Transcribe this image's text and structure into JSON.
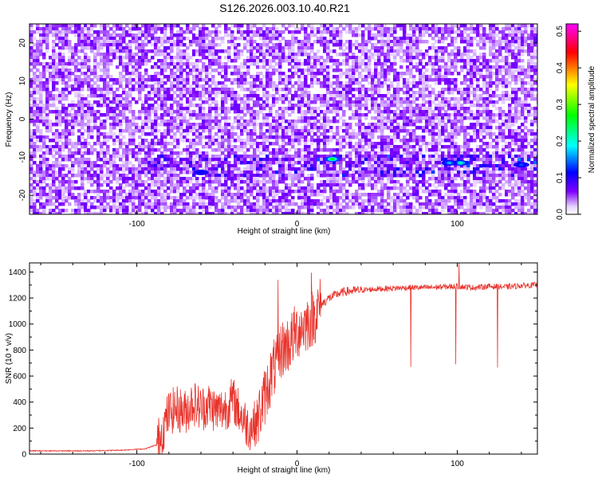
{
  "figure": {
    "title": "S126.2026.003.10.40.R21"
  },
  "chart_data": [
    {
      "type": "heatmap",
      "xlabel": "Height of straight line (km)",
      "ylabel": "Frequency (Hz)",
      "xlim": [
        -167,
        150
      ],
      "ylim": [
        -25,
        25
      ],
      "xticks": [
        -100,
        0,
        100
      ],
      "yticks": [
        -20,
        -10,
        0,
        10,
        20
      ],
      "grid": false,
      "colorbar": {
        "label": "Normalized spectral amplitude",
        "range": [
          0.0,
          0.52
        ],
        "ticks": [
          0.0,
          0.1,
          0.2,
          0.3,
          0.4,
          0.5
        ],
        "colors": [
          "#ffffff",
          "#7f00ff",
          "#0000ff",
          "#00ffff",
          "#00ff00",
          "#ffff00",
          "#ff0000",
          "#ff00ff"
        ]
      },
      "features": [
        {
          "x": [
            -100,
            150
          ],
          "y_center": -12,
          "y_width": 3
        }
      ],
      "peaks": [
        {
          "x": 22,
          "y": -10.5,
          "value": 0.3
        },
        {
          "x": 102,
          "y": -11.5,
          "value": 0.25
        },
        {
          "x": 95,
          "y": -11.5,
          "value": 0.2
        },
        {
          "x": 140,
          "y": -12,
          "value": 0.17
        },
        {
          "x": -60,
          "y": -14,
          "value": 0.15
        }
      ]
    },
    {
      "type": "line",
      "xlabel": "Height of straight line (km)",
      "ylabel": "SNR (10 * v/v)",
      "xlim": [
        -167,
        150
      ],
      "ylim": [
        0,
        1470
      ],
      "xticks": [
        -100,
        0,
        100
      ],
      "yticks": [
        0,
        200,
        400,
        600,
        800,
        1000,
        1200,
        1400
      ],
      "grid": false,
      "series": [
        {
          "color": "#e8332b",
          "x": [
            -167,
            -150,
            -130,
            -110,
            -95,
            -88,
            -85,
            -82,
            -80,
            -75,
            -70,
            -65,
            -60,
            -55,
            -50,
            -45,
            -40,
            -35,
            -30,
            -25,
            -20,
            -15,
            -12,
            -10,
            -5,
            0,
            5,
            10,
            15,
            20,
            25,
            30,
            40,
            50,
            60,
            70,
            80,
            90,
            100,
            110,
            120,
            130,
            140,
            150
          ],
          "y": [
            25,
            25,
            25,
            30,
            40,
            70,
            150,
            250,
            320,
            350,
            320,
            400,
            350,
            380,
            330,
            350,
            420,
            300,
            200,
            250,
            450,
            650,
            700,
            800,
            850,
            950,
            1000,
            1050,
            1150,
            1200,
            1230,
            1250,
            1260,
            1270,
            1275,
            1280,
            1280,
            1285,
            1290,
            1280,
            1290,
            1285,
            1295,
            1300
          ]
        }
      ],
      "spikes": [
        {
          "x": -12,
          "y": 1340
        },
        {
          "x": 9,
          "y": 1395
        },
        {
          "x": 101,
          "y": 1470
        },
        {
          "x": 71,
          "y": 670
        },
        {
          "x": 99,
          "y": 690
        },
        {
          "x": 125,
          "y": 665
        }
      ]
    }
  ]
}
